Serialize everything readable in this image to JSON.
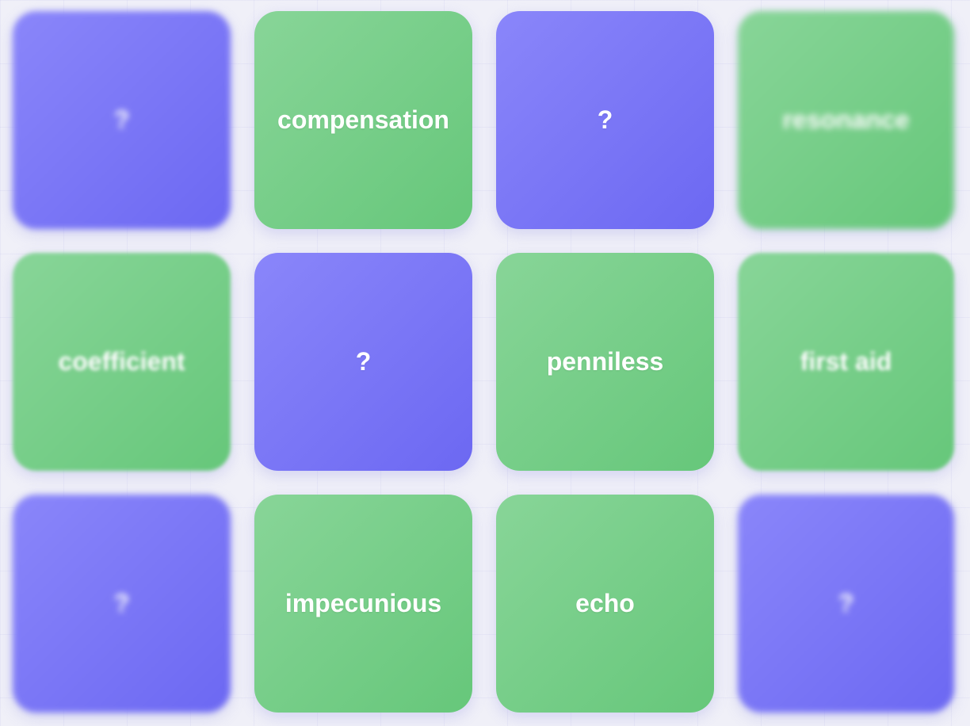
{
  "cards": [
    {
      "label": "?",
      "state": "hidden"
    },
    {
      "label": "compensation",
      "state": "revealed"
    },
    {
      "label": "?",
      "state": "hidden"
    },
    {
      "label": "resonance",
      "state": "revealed"
    },
    {
      "label": "coefficient",
      "state": "revealed"
    },
    {
      "label": "?",
      "state": "hidden"
    },
    {
      "label": "penniless",
      "state": "revealed"
    },
    {
      "label": "first aid",
      "state": "revealed"
    },
    {
      "label": "?",
      "state": "hidden"
    },
    {
      "label": "impecunious",
      "state": "revealed"
    },
    {
      "label": "echo",
      "state": "revealed"
    },
    {
      "label": "?",
      "state": "hidden"
    }
  ],
  "colors": {
    "hidden_card": "#7b77f6",
    "revealed_card": "#74cc86",
    "background": "#f0f0f8"
  }
}
